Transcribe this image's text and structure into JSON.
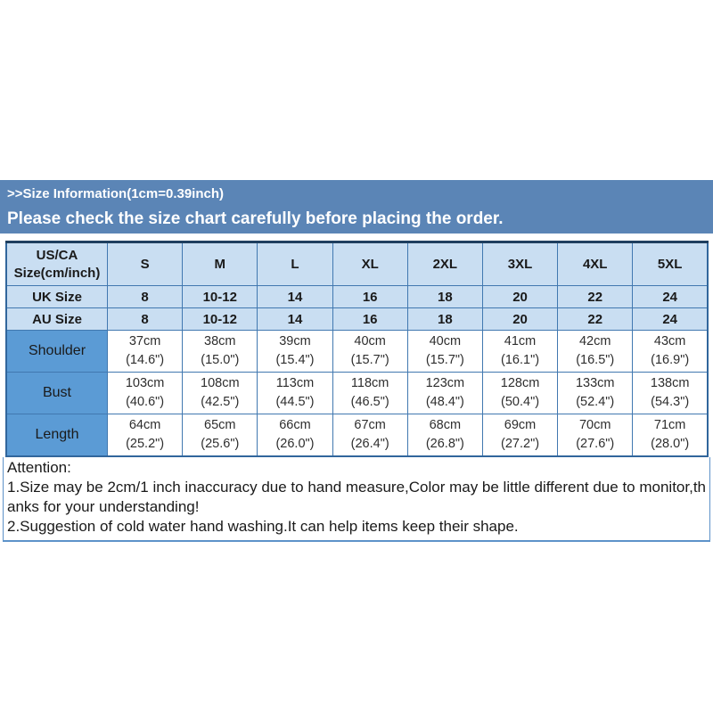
{
  "colors": {
    "banner_bg": "#5b85b6",
    "banner_text": "#ffffff",
    "cell_light_blue": "#c9def2",
    "cell_medium_blue": "#5b9bd5",
    "cell_white": "#ffffff",
    "table_border": "#4178b0",
    "table_outer_border": "#31669c",
    "table_top_border": "#1f3f5f",
    "attention_border": "#5d92c9",
    "text_dark": "#1a1a1a",
    "text_data": "#2e2e2e"
  },
  "banner": {
    "title": ">>Size Information(1cm=0.39inch)",
    "subtitle": "Please check the size chart carefully before placing the order."
  },
  "size_table": {
    "corner_header_lines": [
      "US/CA",
      "Size(cm/inch)"
    ],
    "size_columns": [
      "S",
      "M",
      "L",
      "XL",
      "2XL",
      "3XL",
      "4XL",
      "5XL"
    ],
    "size_rows": [
      {
        "label": "UK Size",
        "values": [
          "8",
          "10-12",
          "14",
          "16",
          "18",
          "20",
          "22",
          "24"
        ]
      },
      {
        "label": "AU Size",
        "values": [
          "8",
          "10-12",
          "14",
          "16",
          "18",
          "20",
          "22",
          "24"
        ]
      }
    ],
    "measurement_rows": [
      {
        "label": "Shoulder",
        "cm": [
          "37cm",
          "38cm",
          "39cm",
          "40cm",
          "40cm",
          "41cm",
          "42cm",
          "43cm"
        ],
        "inch": [
          "(14.6\")",
          "(15.0\")",
          "(15.4\")",
          "(15.7\")",
          "(15.7\")",
          "(16.1\")",
          "(16.5\")",
          "(16.9\")"
        ]
      },
      {
        "label": "Bust",
        "cm": [
          "103cm",
          "108cm",
          "113cm",
          "118cm",
          "123cm",
          "128cm",
          "133cm",
          "138cm"
        ],
        "inch": [
          "(40.6\")",
          "(42.5\")",
          "(44.5\")",
          "(46.5\")",
          "(48.4\")",
          "(50.4\")",
          "(52.4\")",
          "(54.3\")"
        ]
      },
      {
        "label": "Length",
        "cm": [
          "64cm",
          "65cm",
          "66cm",
          "67cm",
          "68cm",
          "69cm",
          "70cm",
          "71cm"
        ],
        "inch": [
          "(25.2\")",
          "(25.6\")",
          "(26.0\")",
          "(26.4\")",
          "(26.8\")",
          "(27.2\")",
          "(27.6\")",
          "(28.0\")"
        ]
      }
    ]
  },
  "attention": {
    "heading": "Attention:",
    "notes": [
      "1.Size may be 2cm/1 inch inaccuracy due to hand measure,Color may be little different due to monitor,thanks for your understanding!",
      "2.Suggestion of cold water hand washing.It can help items keep their shape."
    ]
  }
}
